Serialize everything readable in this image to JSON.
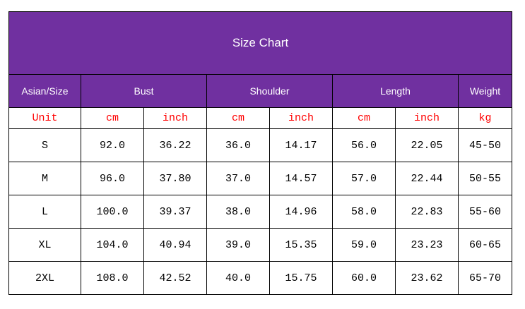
{
  "title": "Size Chart",
  "headers": {
    "size": "Asian/Size",
    "bust": "Bust",
    "shoulder": "Shoulder",
    "length": "Length",
    "weight": "Weight"
  },
  "units": [
    "Unit",
    "cm",
    "inch",
    "cm",
    "inch",
    "cm",
    "inch",
    "kg"
  ],
  "rows": [
    [
      "S",
      "92.0",
      "36.22",
      "36.0",
      "14.17",
      "56.0",
      "22.05",
      "45-50"
    ],
    [
      "M",
      "96.0",
      "37.80",
      "37.0",
      "14.57",
      "57.0",
      "22.44",
      "50-55"
    ],
    [
      "L",
      "100.0",
      "39.37",
      "38.0",
      "14.96",
      "58.0",
      "22.83",
      "55-60"
    ],
    [
      "XL",
      "104.0",
      "40.94",
      "39.0",
      "15.35",
      "59.0",
      "23.23",
      "60-65"
    ],
    [
      "2XL",
      "108.0",
      "42.52",
      "40.0",
      "15.75",
      "60.0",
      "23.62",
      "65-70"
    ]
  ],
  "colors": {
    "header_bg": "#7030A0",
    "header_text": "#ffffff",
    "unit_text": "#ff0000"
  }
}
